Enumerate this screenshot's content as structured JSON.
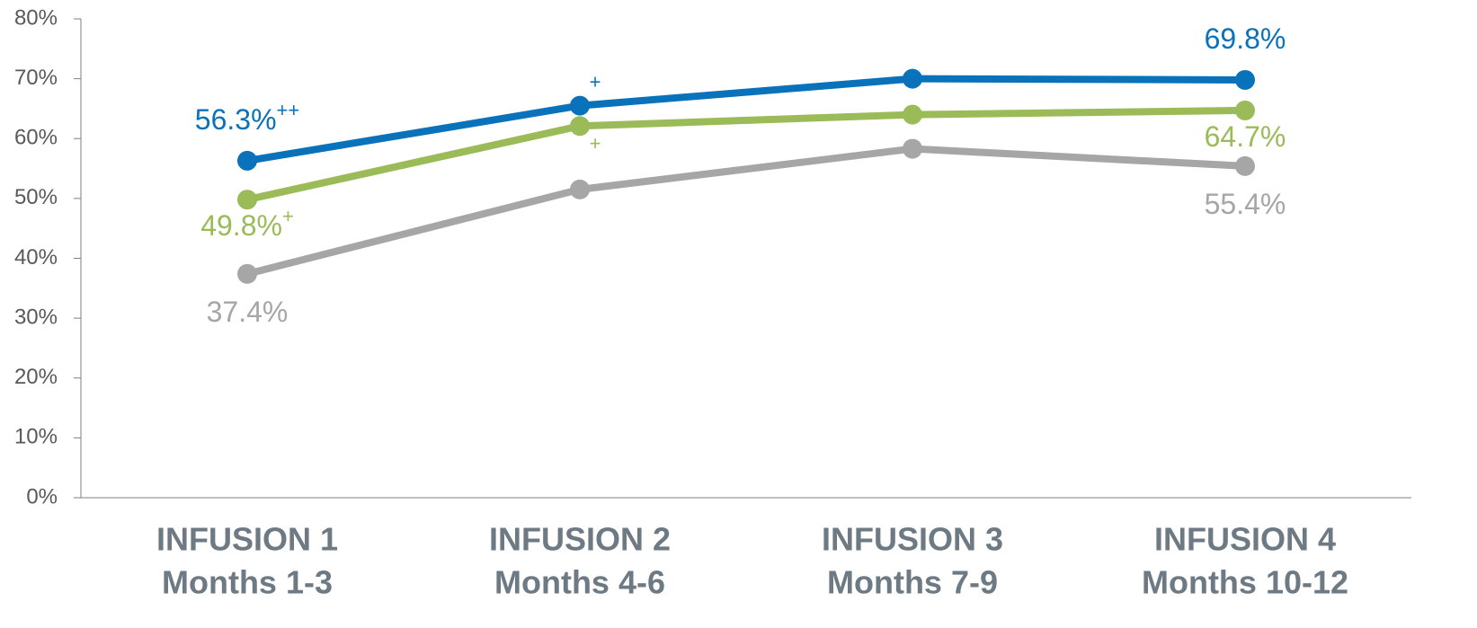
{
  "chart_data": {
    "type": "line",
    "categories": [
      [
        "INFUSION 1",
        "Months 1-3"
      ],
      [
        "INFUSION 2",
        "Months 4-6"
      ],
      [
        "INFUSION 3",
        "Months 7-9"
      ],
      [
        "INFUSION 4",
        "Months 10-12"
      ]
    ],
    "series": [
      {
        "color": "#0a72ba",
        "values": [
          56.3,
          65.5,
          70.0,
          69.8
        ],
        "value_labels": [
          "56.3%",
          null,
          null,
          "69.8%"
        ],
        "annotations": [
          "++",
          "+",
          null,
          null
        ]
      },
      {
        "color": "#9bbb59",
        "values": [
          49.8,
          62.1,
          64.0,
          64.7
        ],
        "value_labels": [
          "49.8%",
          null,
          null,
          "64.7%"
        ],
        "annotations": [
          "+",
          "+",
          null,
          null
        ]
      },
      {
        "color": "#a6a6a6",
        "values": [
          37.4,
          51.5,
          58.3,
          55.4
        ],
        "value_labels": [
          "37.4%",
          null,
          null,
          "55.4%"
        ],
        "annotations": [
          null,
          null,
          null,
          null
        ]
      }
    ],
    "ylim": [
      0,
      80
    ],
    "yticks": [
      {
        "value": 0,
        "label": "0%"
      },
      {
        "value": 10,
        "label": "10%"
      },
      {
        "value": 20,
        "label": "20%"
      },
      {
        "value": 30,
        "label": "30%"
      },
      {
        "value": 40,
        "label": "40%"
      },
      {
        "value": 50,
        "label": "50%"
      },
      {
        "value": 60,
        "label": "60%"
      },
      {
        "value": 70,
        "label": "70%"
      },
      {
        "value": 80,
        "label": "80%"
      }
    ]
  }
}
